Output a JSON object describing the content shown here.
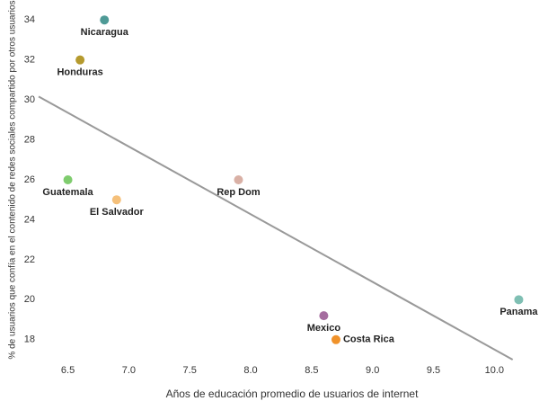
{
  "chart_data": {
    "type": "scatter",
    "x_label": "Años de educación promedio de usuarios de internet",
    "y_label": "% de usuarios que confía en el contenido de redes sociales compartido por otros usuarios",
    "series": [
      {
        "name": "Nicaragua",
        "color": "#4e9a96",
        "x": [
          6.8
        ],
        "values": [
          34
        ]
      },
      {
        "name": "Honduras",
        "color": "#b59a2e",
        "x": [
          6.6
        ],
        "values": [
          32
        ]
      },
      {
        "name": "Guatemala",
        "color": "#7fcc6e",
        "x": [
          6.5
        ],
        "values": [
          26
        ]
      },
      {
        "name": "El Salvador",
        "color": "#f5c07a",
        "x": [
          6.9
        ],
        "values": [
          25
        ]
      },
      {
        "name": "Rep Dom",
        "color": "#d9b0a5",
        "x": [
          7.9
        ],
        "values": [
          26
        ]
      },
      {
        "name": "Mexico",
        "color": "#a56d9f",
        "x": [
          8.6
        ],
        "values": [
          19.2
        ]
      },
      {
        "name": "Costa Rica",
        "color": "#f0922a",
        "x": [
          8.7
        ],
        "values": [
          18
        ]
      },
      {
        "name": "Panama",
        "color": "#7fbfb3",
        "x": [
          10.2
        ],
        "values": [
          20
        ]
      }
    ],
    "trendline": {
      "color": "#999999",
      "x": [
        6.26,
        10.15
      ],
      "values": [
        30.17,
        17.0
      ]
    },
    "xlim": [
      6.26,
      10.44
    ],
    "ylim": [
      17,
      35
    ],
    "xticks": [
      6.5,
      {
        "value": 7,
        "label": "7.0"
      },
      7.5,
      {
        "value": 8,
        "label": "8.0"
      },
      8.5,
      {
        "value": 9,
        "label": "9.0"
      },
      9.5,
      {
        "value": 10,
        "label": "10.0"
      }
    ],
    "yticks": [
      18,
      20,
      22,
      24,
      26,
      28,
      30,
      32,
      34
    ]
  }
}
